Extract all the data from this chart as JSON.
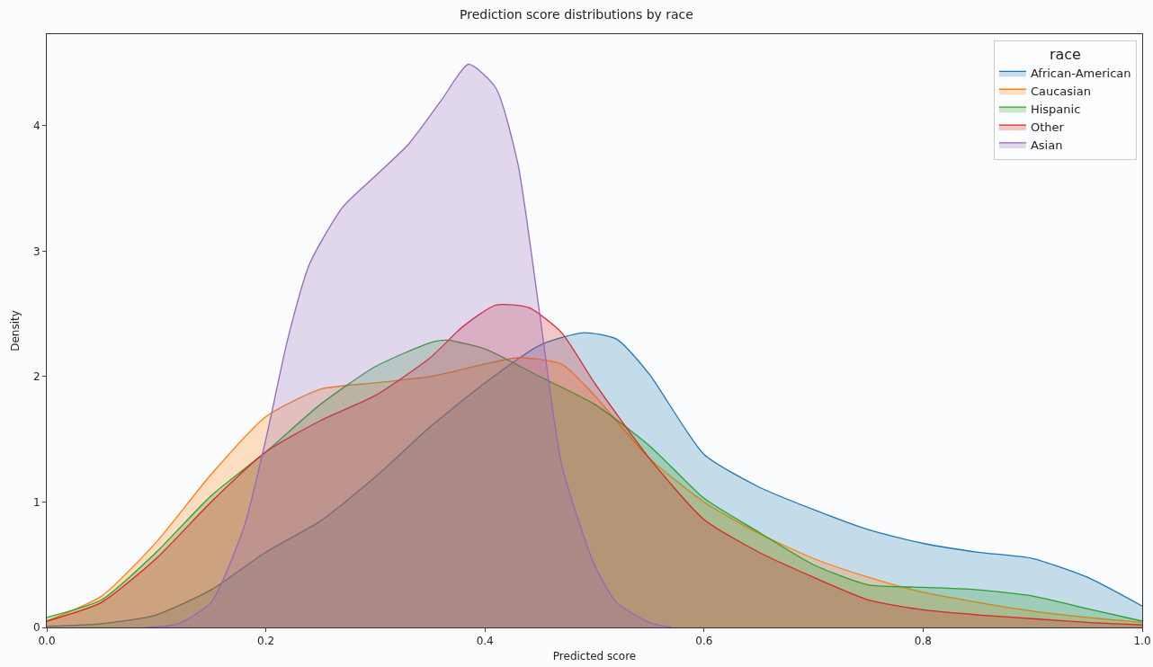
{
  "chart_data": {
    "type": "area",
    "title": "Prediction score distributions by race",
    "xlabel": "Predicted score",
    "ylabel": "Density",
    "legend_title": "race",
    "legend": "top right",
    "grid": false,
    "xlim": [
      0,
      1
    ],
    "ylim": [
      0,
      4.73
    ],
    "xticks": [
      {
        "value": 0,
        "label": "0.0"
      },
      0.2,
      0.4,
      0.6,
      0.8,
      {
        "value": 1,
        "label": "1.0"
      }
    ],
    "yticks": [
      0,
      1,
      2,
      3,
      4
    ],
    "series": [
      {
        "name": "African-American",
        "color": "#1f77b4",
        "x": [
          0,
          0.05,
          0.1,
          0.15,
          0.2,
          0.25,
          0.3,
          0.35,
          0.4,
          0.45,
          0.49,
          0.52,
          0.55,
          0.6,
          0.65,
          0.7,
          0.75,
          0.8,
          0.85,
          0.9,
          0.95,
          1
        ],
        "values": [
          0.01,
          0.03,
          0.1,
          0.3,
          0.6,
          0.85,
          1.2,
          1.6,
          1.95,
          2.25,
          2.35,
          2.3,
          2.02,
          1.38,
          1.12,
          0.94,
          0.78,
          0.67,
          0.6,
          0.55,
          0.4,
          0.17
        ]
      },
      {
        "name": "Caucasian",
        "color": "#ff7f0e",
        "x": [
          0,
          0.05,
          0.1,
          0.15,
          0.2,
          0.25,
          0.3,
          0.35,
          0.4,
          0.43,
          0.47,
          0.5,
          0.55,
          0.6,
          0.65,
          0.7,
          0.75,
          0.8,
          0.85,
          0.9,
          0.95,
          1
        ],
        "values": [
          0.05,
          0.25,
          0.68,
          1.22,
          1.68,
          1.9,
          1.95,
          2.0,
          2.1,
          2.15,
          2.1,
          1.85,
          1.35,
          1.0,
          0.75,
          0.55,
          0.4,
          0.28,
          0.2,
          0.13,
          0.08,
          0.04
        ]
      },
      {
        "name": "Hispanic",
        "color": "#2ca02c",
        "x": [
          0,
          0.05,
          0.1,
          0.15,
          0.2,
          0.25,
          0.3,
          0.35,
          0.365,
          0.4,
          0.45,
          0.5,
          0.55,
          0.6,
          0.65,
          0.7,
          0.75,
          0.8,
          0.85,
          0.9,
          0.95,
          1
        ],
        "values": [
          0.08,
          0.22,
          0.6,
          1.05,
          1.4,
          1.78,
          2.08,
          2.27,
          2.29,
          2.22,
          2.0,
          1.78,
          1.45,
          1.03,
          0.76,
          0.5,
          0.34,
          0.32,
          0.3,
          0.25,
          0.15,
          0.05
        ]
      },
      {
        "name": "Other",
        "color": "#d62728",
        "x": [
          0,
          0.05,
          0.1,
          0.15,
          0.2,
          0.25,
          0.3,
          0.35,
          0.38,
          0.41,
          0.44,
          0.47,
          0.5,
          0.55,
          0.6,
          0.65,
          0.7,
          0.75,
          0.8,
          0.85,
          0.9,
          0.95,
          1
        ],
        "values": [
          0.05,
          0.2,
          0.55,
          1.0,
          1.4,
          1.65,
          1.85,
          2.15,
          2.4,
          2.57,
          2.55,
          2.35,
          1.95,
          1.35,
          0.86,
          0.6,
          0.4,
          0.22,
          0.14,
          0.1,
          0.07,
          0.04,
          0.02
        ]
      },
      {
        "name": "Asian",
        "color": "#9467bd",
        "x": [
          0.09,
          0.12,
          0.15,
          0.18,
          0.2,
          0.22,
          0.24,
          0.27,
          0.3,
          0.33,
          0.36,
          0.385,
          0.41,
          0.43,
          0.45,
          0.47,
          0.5,
          0.52,
          0.55,
          0.57
        ],
        "values": [
          0,
          0.03,
          0.2,
          0.8,
          1.5,
          2.3,
          2.9,
          3.35,
          3.6,
          3.85,
          4.2,
          4.49,
          4.3,
          3.7,
          2.5,
          1.3,
          0.5,
          0.2,
          0.04,
          0
        ]
      }
    ]
  }
}
